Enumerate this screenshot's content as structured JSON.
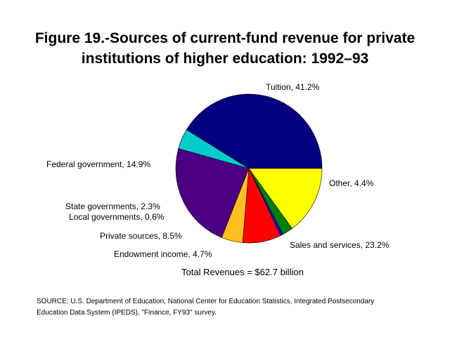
{
  "chart_data": {
    "type": "pie",
    "title_line1": "Figure 19.-Sources of current-fund revenue for private",
    "title_line2": "institutions of higher education:  1992–93",
    "slices": [
      {
        "name": "Tuition",
        "label": "Tuition, 41.2%",
        "value": 41.2,
        "color": "#000080"
      },
      {
        "name": "Other",
        "label": "Other, 4.4%",
        "value": 4.4,
        "color": "#00CCCC"
      },
      {
        "name": "Sales and services",
        "label": "Sales and services, 23.2%",
        "value": 23.2,
        "color": "#4B0082"
      },
      {
        "name": "Endowment income",
        "label": "Endowment income, 4.7%",
        "value": 4.7,
        "color": "#FFC020"
      },
      {
        "name": "Private sources",
        "label": "Private sources, 8.5%",
        "value": 8.5,
        "color": "#FF0000"
      },
      {
        "name": "Local governments",
        "label": "Local governments, 0.6%",
        "value": 0.6,
        "color": "#1010E0"
      },
      {
        "name": "State governments",
        "label": "State governments, 2.3%",
        "value": 2.3,
        "color": "#008000"
      },
      {
        "name": "Federal government",
        "label": "Federal government, 14.9%",
        "value": 14.9,
        "color": "#FFFF00"
      }
    ],
    "total_text": "Total Revenues = $62.7 billion"
  },
  "source_line1": "SOURCE:  U.S. Department of Education, National Center for Education Statistics, Integrated Postsecondary",
  "source_line2": "Education Data System (IPEDS), \"Finance, FY93\" survey."
}
